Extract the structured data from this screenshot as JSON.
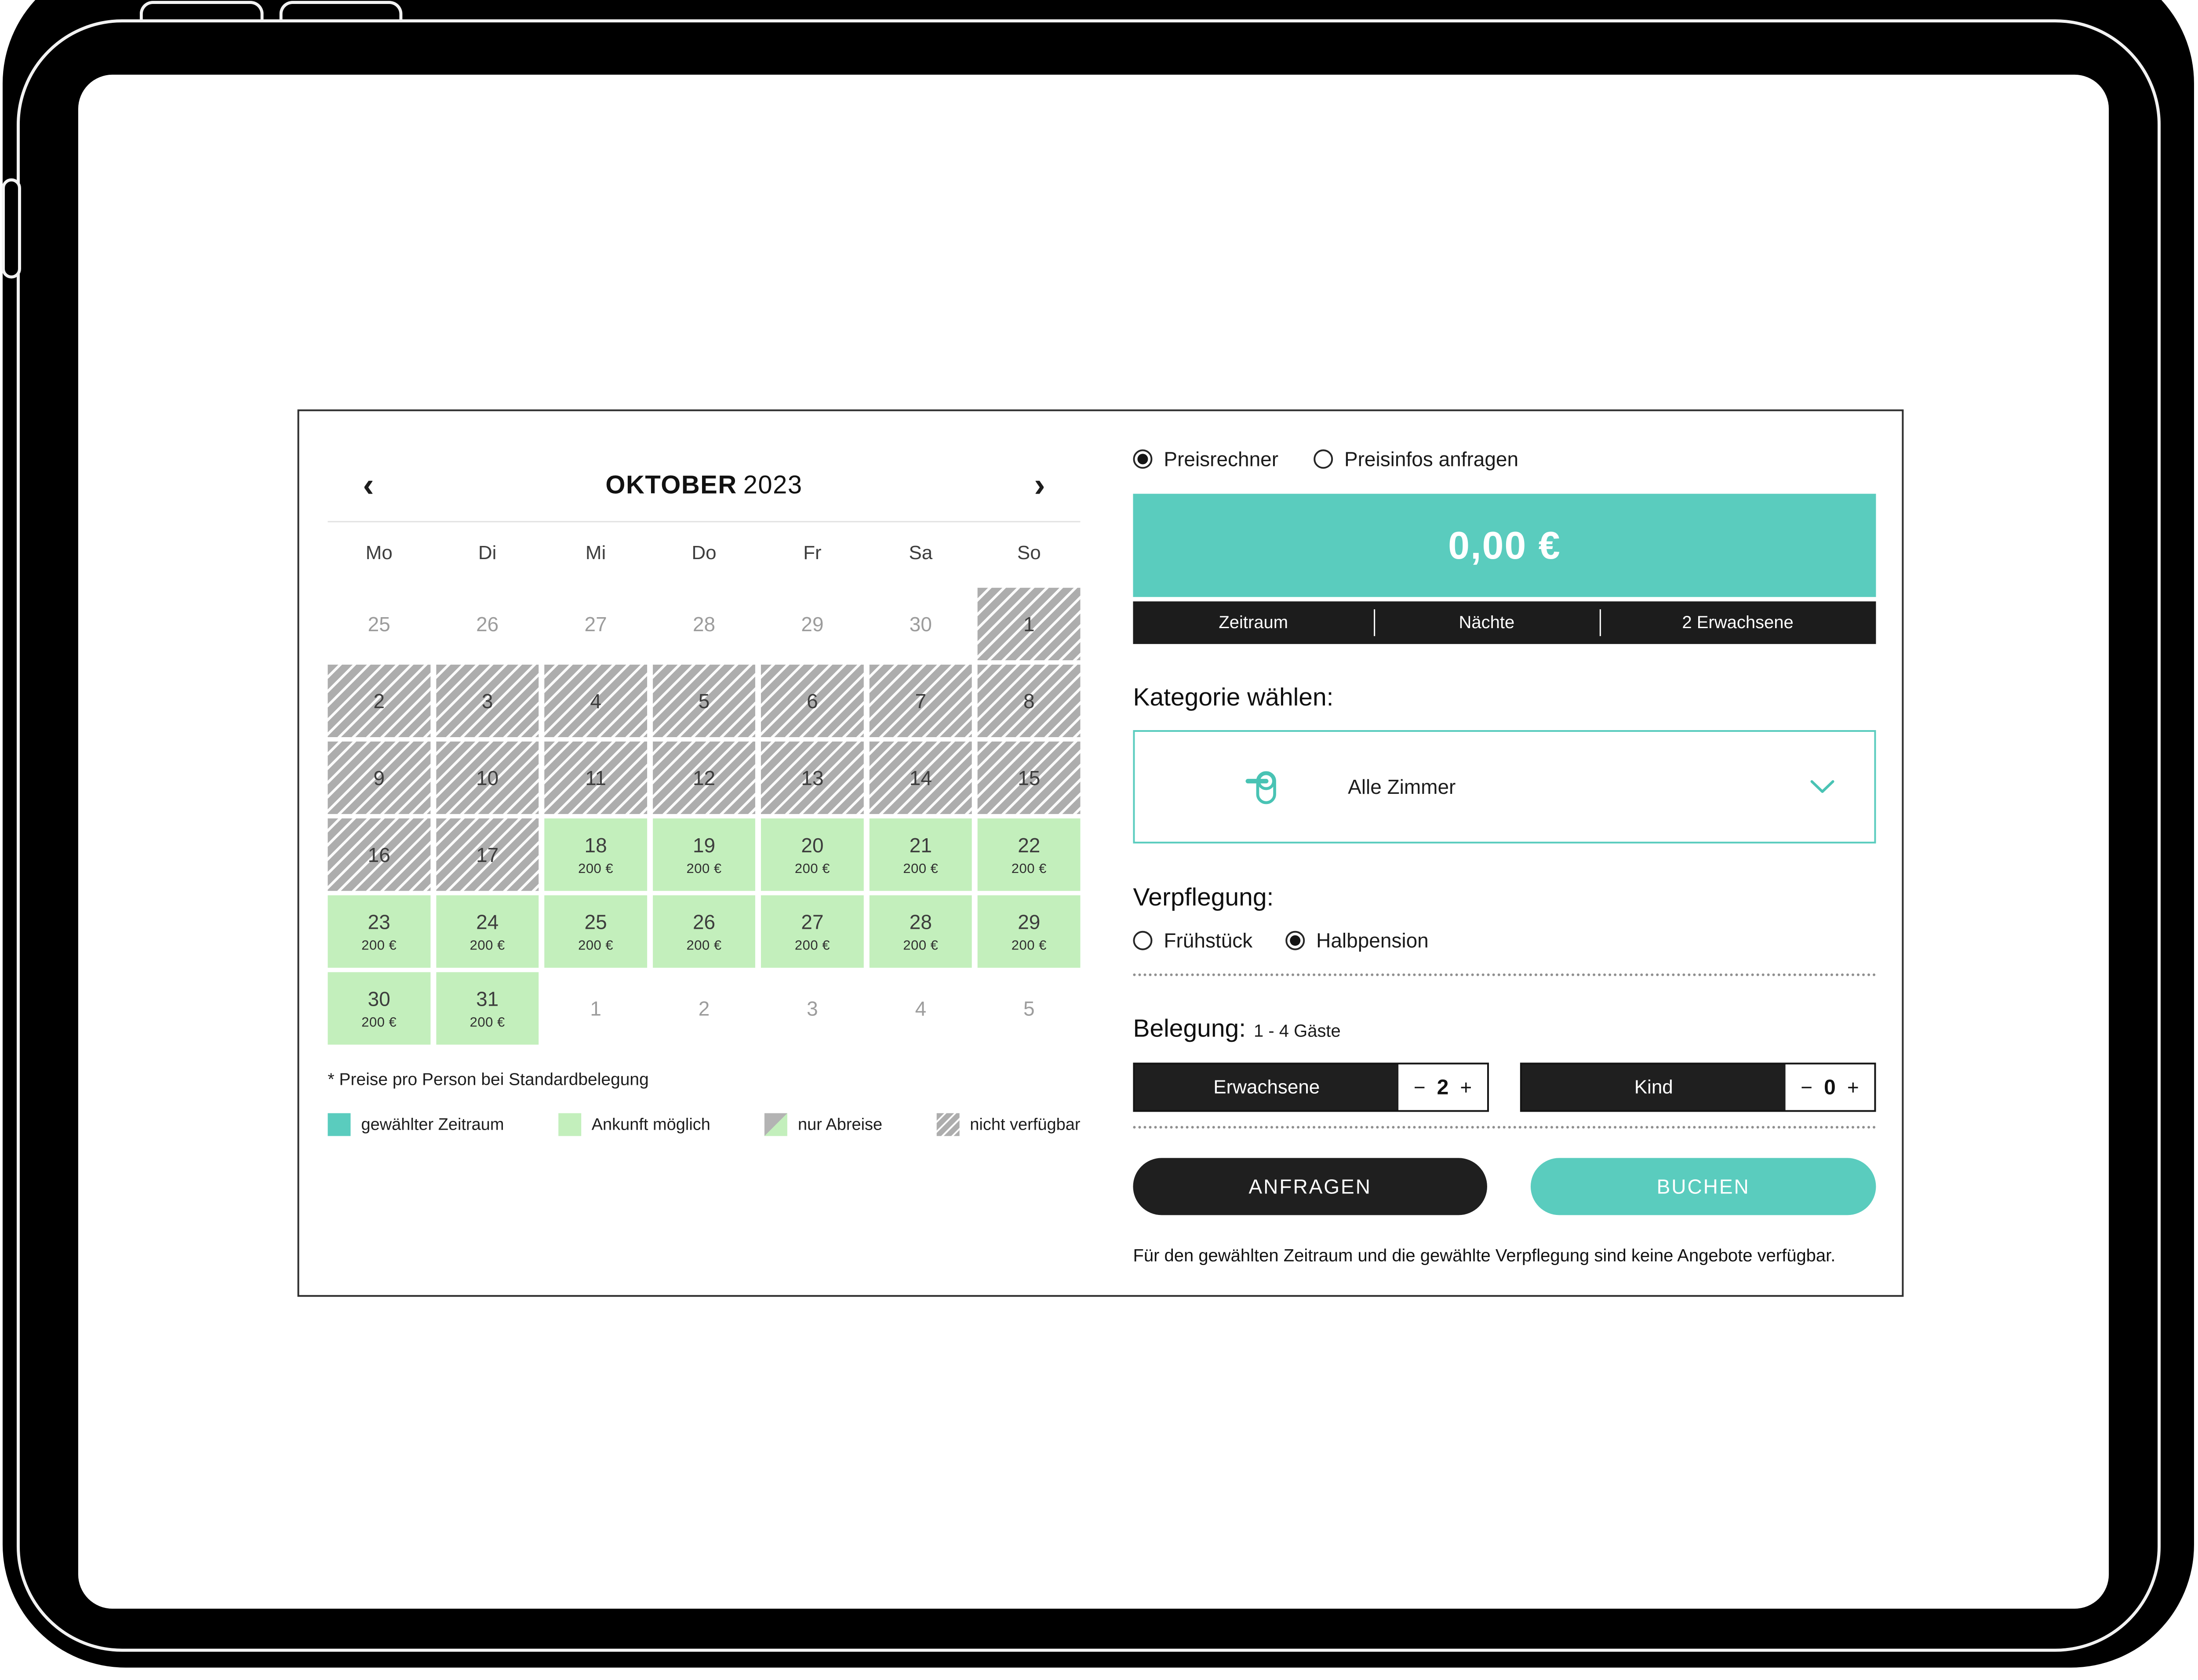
{
  "colors": {
    "accent_teal": "#5accbe",
    "available_green": "#c3efbc",
    "unavailable_gray": "#adadad",
    "dark": "#1f1f1f"
  },
  "calendar": {
    "prev_label": "‹",
    "next_label": "›",
    "month": "OKTOBER",
    "year": "2023",
    "weekdays": [
      "Mo",
      "Di",
      "Mi",
      "Do",
      "Fr",
      "Sa",
      "So"
    ],
    "cells": [
      {
        "day": "25",
        "type": "adjacent"
      },
      {
        "day": "26",
        "type": "adjacent"
      },
      {
        "day": "27",
        "type": "adjacent"
      },
      {
        "day": "28",
        "type": "adjacent"
      },
      {
        "day": "29",
        "type": "adjacent"
      },
      {
        "day": "30",
        "type": "adjacent"
      },
      {
        "day": "1",
        "type": "unavailable"
      },
      {
        "day": "2",
        "type": "unavailable"
      },
      {
        "day": "3",
        "type": "unavailable"
      },
      {
        "day": "4",
        "type": "unavailable"
      },
      {
        "day": "5",
        "type": "unavailable"
      },
      {
        "day": "6",
        "type": "unavailable"
      },
      {
        "day": "7",
        "type": "unavailable"
      },
      {
        "day": "8",
        "type": "unavailable"
      },
      {
        "day": "9",
        "type": "unavailable"
      },
      {
        "day": "10",
        "type": "unavailable"
      },
      {
        "day": "11",
        "type": "unavailable"
      },
      {
        "day": "12",
        "type": "unavailable"
      },
      {
        "day": "13",
        "type": "unavailable"
      },
      {
        "day": "14",
        "type": "unavailable"
      },
      {
        "day": "15",
        "type": "unavailable"
      },
      {
        "day": "16",
        "type": "unavailable"
      },
      {
        "day": "17",
        "type": "unavailable"
      },
      {
        "day": "18",
        "type": "available",
        "price": "200 €"
      },
      {
        "day": "19",
        "type": "available",
        "price": "200 €"
      },
      {
        "day": "20",
        "type": "available",
        "price": "200 €"
      },
      {
        "day": "21",
        "type": "available",
        "price": "200 €"
      },
      {
        "day": "22",
        "type": "available",
        "price": "200 €"
      },
      {
        "day": "23",
        "type": "available",
        "price": "200 €"
      },
      {
        "day": "24",
        "type": "available",
        "price": "200 €"
      },
      {
        "day": "25",
        "type": "available",
        "price": "200 €"
      },
      {
        "day": "26",
        "type": "available",
        "price": "200 €"
      },
      {
        "day": "27",
        "type": "available",
        "price": "200 €"
      },
      {
        "day": "28",
        "type": "available",
        "price": "200 €"
      },
      {
        "day": "29",
        "type": "available",
        "price": "200 €"
      },
      {
        "day": "30",
        "type": "available",
        "price": "200 €"
      },
      {
        "day": "31",
        "type": "available",
        "price": "200 €"
      },
      {
        "day": "1",
        "type": "adjacent"
      },
      {
        "day": "2",
        "type": "adjacent"
      },
      {
        "day": "3",
        "type": "adjacent"
      },
      {
        "day": "4",
        "type": "adjacent"
      },
      {
        "day": "5",
        "type": "adjacent"
      }
    ],
    "note": "* Preise pro Person bei Standardbelegung",
    "legend": [
      {
        "label": "gewählter Zeitraum",
        "type": "selected"
      },
      {
        "label": "Ankunft möglich",
        "type": "available"
      },
      {
        "label": "nur Abreise",
        "type": "departure"
      },
      {
        "label": "nicht verfügbar",
        "type": "unavailable"
      }
    ]
  },
  "panel": {
    "mode_options": [
      {
        "label": "Preisrechner",
        "checked": true
      },
      {
        "label": "Preisinfos anfragen",
        "checked": false
      }
    ],
    "price": "0,00 €",
    "summary": [
      "Zeitraum",
      "Nächte",
      "2 Erwachsene"
    ],
    "category_heading": "Kategorie wählen:",
    "category_value": "Alle Zimmer",
    "board_heading": "Verpflegung:",
    "board_options": [
      {
        "label": "Frühstück",
        "checked": false
      },
      {
        "label": "Halbpension",
        "checked": true
      }
    ],
    "occupancy_heading": "Belegung:",
    "occupancy_range": "1 - 4 Gäste",
    "steppers": [
      {
        "label": "Erwachsene",
        "minus": "−",
        "value": "2",
        "plus": "+"
      },
      {
        "label": "Kind",
        "minus": "−",
        "value": "0",
        "plus": "+"
      }
    ],
    "buttons": {
      "request": "ANFRAGEN",
      "book": "BUCHEN"
    },
    "footer_note": "Für den gewählten Zeitraum und die gewählte Verpflegung sind keine Angebote verfügbar."
  }
}
